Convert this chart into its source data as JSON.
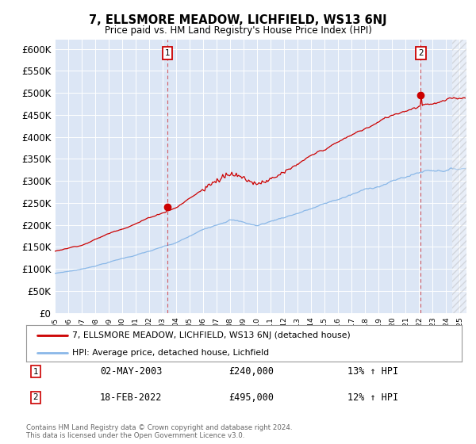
{
  "title": "7, ELLSMORE MEADOW, LICHFIELD, WS13 6NJ",
  "subtitle": "Price paid vs. HM Land Registry's House Price Index (HPI)",
  "ylim": [
    0,
    620000
  ],
  "yticks": [
    0,
    50000,
    100000,
    150000,
    200000,
    250000,
    300000,
    350000,
    400000,
    450000,
    500000,
    550000,
    600000
  ],
  "ytick_labels": [
    "£0",
    "£50K",
    "£100K",
    "£150K",
    "£200K",
    "£250K",
    "£300K",
    "£350K",
    "£400K",
    "£450K",
    "£500K",
    "£550K",
    "£600K"
  ],
  "plot_bg_color": "#dce6f5",
  "grid_color": "#ffffff",
  "red_color": "#cc0000",
  "blue_color": "#8ab8e8",
  "sale1_date_label": "02-MAY-2003",
  "sale1_price": 240000,
  "sale1_pct": "13% ↑ HPI",
  "sale2_date_label": "18-FEB-2022",
  "sale2_price": 495000,
  "sale2_pct": "12% ↑ HPI",
  "legend_label_red": "7, ELLSMORE MEADOW, LICHFIELD, WS13 6NJ (detached house)",
  "legend_label_blue": "HPI: Average price, detached house, Lichfield",
  "footer": "Contains HM Land Registry data © Crown copyright and database right 2024.\nThis data is licensed under the Open Government Licence v3.0.",
  "sale1_x": 2003.33,
  "sale2_x": 2022.12
}
